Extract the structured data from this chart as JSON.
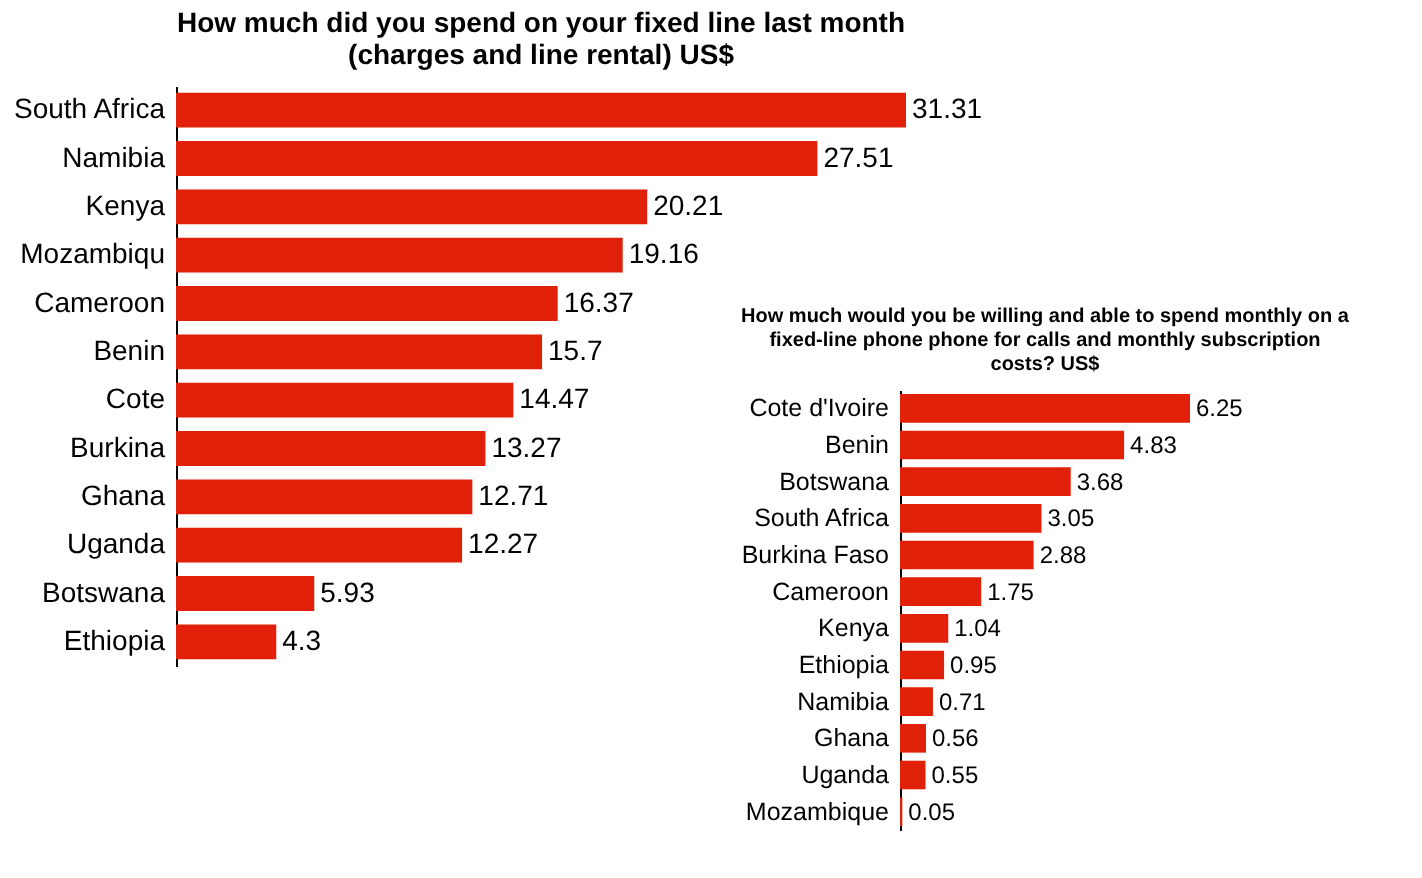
{
  "chart_data": [
    {
      "type": "bar",
      "orientation": "horizontal",
      "title": "How much did you spend on your fixed line last month (charges and line rental) US$",
      "categories": [
        "South Africa",
        "Namibia",
        "Kenya",
        "Mozambiqu",
        "Cameroon",
        "Benin",
        "Cote",
        "Burkina",
        "Ghana",
        "Uganda",
        "Botswana",
        "Ethiopia"
      ],
      "values": [
        31.31,
        27.51,
        20.21,
        19.16,
        16.37,
        15.7,
        14.47,
        13.27,
        12.71,
        12.27,
        5.93,
        4.3
      ],
      "color": "#e02008",
      "data_labels": true
    },
    {
      "type": "bar",
      "orientation": "horizontal",
      "title": "How much would you be willing and able to spend monthly on a fixed-line phone phone for calls and monthly subscription costs? US$",
      "categories": [
        "Cote d'Ivoire",
        "Benin",
        "Botswana",
        "South Africa",
        "Burkina Faso",
        "Cameroon",
        "Kenya",
        "Ethiopia",
        "Namibia",
        "Ghana",
        "Uganda",
        "Mozambique"
      ],
      "values": [
        6.25,
        4.83,
        3.68,
        3.05,
        2.88,
        1.75,
        1.04,
        0.95,
        0.71,
        0.56,
        0.55,
        0.05
      ],
      "color": "#e02008",
      "data_labels": true
    }
  ]
}
